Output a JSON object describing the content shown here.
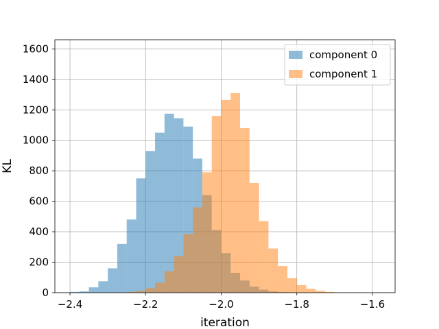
{
  "chart_data": {
    "type": "bar",
    "xlabel": "iteration",
    "ylabel": "KL",
    "xlim": [
      -2.44,
      -1.54
    ],
    "ylim": [
      0,
      1660
    ],
    "xticks": [
      -2.4,
      -2.2,
      -2.0,
      -1.8,
      -1.6
    ],
    "xtick_labels": [
      "−2.4",
      "−2.2",
      "−2.0",
      "−1.8",
      "−1.6"
    ],
    "yticks": [
      0,
      200,
      400,
      600,
      800,
      1000,
      1200,
      1400,
      1600
    ],
    "ytick_labels": [
      "0",
      "200",
      "400",
      "600",
      "800",
      "1000",
      "1200",
      "1400",
      "1600"
    ],
    "grid": true,
    "legend_position": "top-right",
    "series": [
      {
        "name": "component 0",
        "color": "#1f77b4",
        "opacity": 0.5,
        "bin_edges": [
          -2.4,
          -2.375,
          -2.35,
          -2.325,
          -2.3,
          -2.275,
          -2.25,
          -2.225,
          -2.2,
          -2.175,
          -2.15,
          -2.125,
          -2.1,
          -2.075,
          -2.05,
          -2.025,
          -2.0,
          -1.975,
          -1.95,
          -1.925,
          -1.9,
          -1.875,
          -1.85,
          -1.825,
          -1.8
        ],
        "counts": [
          5,
          8,
          35,
          75,
          160,
          320,
          480,
          750,
          930,
          1050,
          1175,
          1145,
          1090,
          880,
          640,
          410,
          260,
          130,
          80,
          40,
          20,
          8,
          4,
          2
        ]
      },
      {
        "name": "component 1",
        "color": "#ff7f0e",
        "opacity": 0.5,
        "bin_edges": [
          -2.275,
          -2.25,
          -2.225,
          -2.2,
          -2.175,
          -2.15,
          -2.125,
          -2.1,
          -2.075,
          -2.05,
          -2.025,
          -2.0,
          -1.975,
          -1.95,
          -1.925,
          -1.9,
          -1.875,
          -1.85,
          -1.825,
          -1.8,
          -1.775,
          -1.75,
          -1.725,
          -1.7,
          -1.675
        ],
        "counts": [
          2,
          5,
          12,
          30,
          65,
          140,
          240,
          385,
          560,
          790,
          1160,
          1265,
          1310,
          1080,
          720,
          470,
          290,
          175,
          95,
          50,
          25,
          12,
          5,
          2
        ]
      }
    ]
  }
}
